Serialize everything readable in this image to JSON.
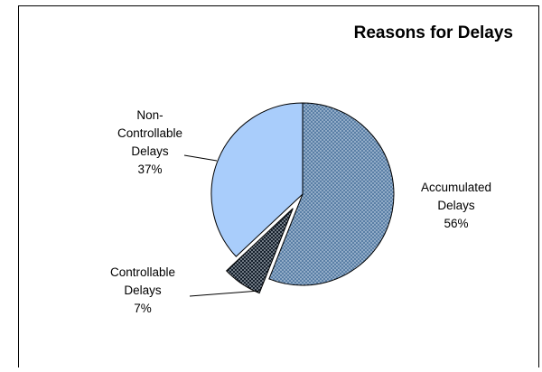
{
  "chart_data": {
    "type": "pie",
    "title": "Reasons for Delays",
    "slices": [
      {
        "name": "Accumulated Delays",
        "label_lines": [
          "Accumulated",
          "Delays"
        ],
        "percent_label": "56%",
        "value": 56,
        "color": "#5a7fa6",
        "pattern": "dotted",
        "exploded": false
      },
      {
        "name": "Controllable Delays",
        "label_lines": [
          "Controllable",
          "Delays"
        ],
        "percent_label": "7%",
        "value": 7,
        "color": "#15202c",
        "pattern": "dotted",
        "exploded": true
      },
      {
        "name": "Non-Controllable Delays",
        "label_lines": [
          "Non-",
          "Controllable",
          "Delays"
        ],
        "percent_label": "37%",
        "value": 37,
        "color": "#a9cdfb",
        "pattern": "solid",
        "exploded": false
      }
    ],
    "start_angle_deg": 0,
    "direction": "clockwise",
    "legend": "none"
  }
}
